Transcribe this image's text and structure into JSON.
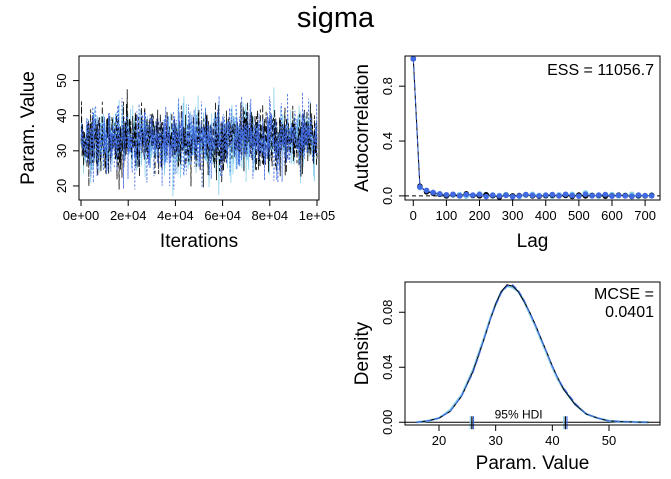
{
  "title": "sigma",
  "colors": {
    "chain1": "#87ceeb",
    "chain2": "#000000",
    "chain3": "#4169e1",
    "dens_fill": "#ffffff"
  },
  "chart_data": [
    {
      "id": "trace",
      "type": "line",
      "xlabel": "Iterations",
      "ylabel": "Param. Value",
      "xlim": [
        0,
        100000
      ],
      "ylim": [
        16,
        57
      ],
      "xticks": [
        0,
        20000,
        40000,
        60000,
        80000,
        100000
      ],
      "xtick_labels": [
        "0e+00",
        "2e+04",
        "4e+04",
        "6e+04",
        "8e+04",
        "1e+05"
      ],
      "yticks": [
        20,
        30,
        40,
        50
      ],
      "ytick_labels": [
        "20",
        "30",
        "40",
        "50"
      ],
      "series": [
        {
          "color_key": "chain1",
          "center": 33,
          "spread": 4.6,
          "min": 17,
          "max": 56
        },
        {
          "color_key": "chain2",
          "center": 33,
          "spread": 4.6,
          "min": 19,
          "max": 53
        },
        {
          "color_key": "chain3",
          "center": 33,
          "spread": 4.6,
          "min": 19,
          "max": 55
        }
      ]
    },
    {
      "id": "autocorrelation",
      "type": "line",
      "xlabel": "Lag",
      "ylabel": "Autocorrelation",
      "annotation": "ESS = 11056.7",
      "xlim": [
        -25,
        745
      ],
      "ylim": [
        -0.03,
        1.02
      ],
      "xticks": [
        0,
        100,
        200,
        300,
        400,
        500,
        600,
        700
      ],
      "xtick_labels": [
        "0",
        "100",
        "200",
        "300",
        "400",
        "500",
        "600",
        "700"
      ],
      "yticks": [
        0,
        0.4,
        0.8
      ],
      "ytick_labels": [
        "0.0",
        "0.4",
        "0.8"
      ],
      "lags": [
        0,
        20,
        40,
        60,
        80,
        100,
        120,
        140,
        160,
        180,
        200,
        220,
        240,
        260,
        280,
        300,
        320,
        340,
        360,
        380,
        400,
        420,
        440,
        460,
        480,
        500,
        520,
        540,
        560,
        580,
        600,
        620,
        640,
        660,
        680,
        700,
        720
      ],
      "series": [
        {
          "color_key": "chain1",
          "values": [
            1.0,
            0.06,
            0.035,
            0.02,
            0.01,
            0.0,
            0.005,
            0.01,
            -0.002,
            0.0,
            0.015,
            0.01,
            0.0,
            0.002,
            0.01,
            0.0,
            -0.005,
            0.005,
            0.012,
            0.004,
            0.0,
            -0.003,
            0.008,
            0.002,
            0.012,
            0.0,
            0.022,
            0.006,
            -0.002,
            0.004,
            0.01,
            0.0,
            0.004,
            0.012,
            -0.003,
            0.0,
            0.006
          ]
        },
        {
          "color_key": "chain2",
          "values": [
            1.0,
            0.07,
            0.03,
            0.02,
            0.012,
            0.0,
            0.01,
            0.0,
            0.015,
            0.004,
            0.0,
            0.008,
            0.002,
            -0.008,
            0.005,
            0.0,
            0.002,
            0.008,
            0.0,
            -0.003,
            0.002,
            0.005,
            0.0,
            0.004,
            -0.004,
            0.006,
            0.0,
            0.002,
            0.004,
            -0.002,
            0.0,
            0.006,
            0.002,
            -0.004,
            0.002,
            0.0,
            0.003
          ]
        },
        {
          "color_key": "chain3",
          "values": [
            1.0,
            0.065,
            0.04,
            0.025,
            0.015,
            0.008,
            0.012,
            0.0,
            0.01,
            0.006,
            0.01,
            -0.005,
            0.006,
            0.0,
            0.004,
            -0.006,
            0.0,
            0.01,
            0.004,
            0.0,
            0.006,
            0.01,
            0.0,
            0.012,
            0.003,
            -0.002,
            0.012,
            0.0,
            0.006,
            0.01,
            -0.002,
            0.004,
            0.0,
            -0.004,
            0.006,
            0.002,
            0.0
          ]
        }
      ],
      "refline": 0
    },
    {
      "id": "density",
      "type": "line",
      "xlabel": "Param. Value",
      "ylabel": "Density",
      "annotation_line1": "MCSE =",
      "annotation_line2": "0.0401",
      "hdi_label": "95% HDI",
      "hdi": [
        25.8,
        42.3
      ],
      "xlim": [
        14,
        59
      ],
      "ylim": [
        -0.002,
        0.102
      ],
      "xticks": [
        20,
        30,
        40,
        50
      ],
      "xtick_labels": [
        "20",
        "30",
        "40",
        "50"
      ],
      "yticks": [
        0,
        0.04,
        0.08
      ],
      "ytick_labels": [
        "0.00",
        "0.04",
        "0.08"
      ],
      "x": [
        16,
        18,
        20,
        22,
        24,
        26,
        27,
        28,
        29,
        30,
        31,
        32,
        33,
        34,
        35,
        36,
        37,
        38,
        39,
        40,
        41,
        42,
        44,
        46,
        48,
        50,
        52,
        55,
        57
      ],
      "series": [
        {
          "color_key": "chain1",
          "values": [
            0.0,
            0.001,
            0.003,
            0.009,
            0.02,
            0.038,
            0.05,
            0.062,
            0.075,
            0.086,
            0.095,
            0.099,
            0.098,
            0.095,
            0.088,
            0.079,
            0.07,
            0.06,
            0.05,
            0.04,
            0.031,
            0.024,
            0.013,
            0.006,
            0.003,
            0.001,
            0.0005,
            0.0001,
            0.0
          ]
        },
        {
          "color_key": "chain2",
          "values": [
            0.0,
            0.001,
            0.003,
            0.008,
            0.019,
            0.037,
            0.049,
            0.061,
            0.074,
            0.086,
            0.095,
            0.1,
            0.099,
            0.095,
            0.088,
            0.08,
            0.071,
            0.061,
            0.051,
            0.041,
            0.032,
            0.024,
            0.013,
            0.006,
            0.003,
            0.001,
            0.0005,
            0.0001,
            0.0
          ]
        },
        {
          "color_key": "chain3",
          "values": [
            0.0,
            0.001,
            0.003,
            0.008,
            0.019,
            0.036,
            0.048,
            0.061,
            0.074,
            0.085,
            0.094,
            0.099,
            0.1,
            0.096,
            0.089,
            0.08,
            0.071,
            0.061,
            0.051,
            0.041,
            0.032,
            0.025,
            0.014,
            0.006,
            0.003,
            0.001,
            0.0005,
            0.0001,
            0.0
          ]
        }
      ]
    }
  ]
}
